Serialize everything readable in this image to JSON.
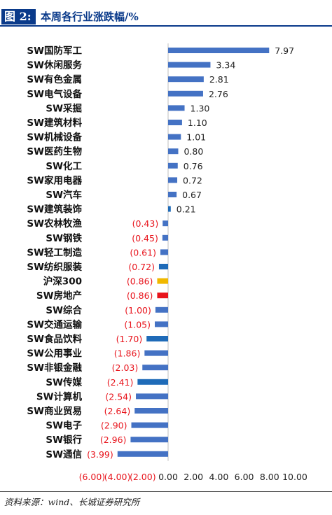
{
  "header": {
    "fig_tag": "图 2:",
    "title": "本周各行业涨跌幅/%"
  },
  "footer": {
    "source": "资料来源：wind、长城证券研究所"
  },
  "colors": {
    "bar_default": "#4472c4",
    "bar_highlight": "#1f6bb8",
    "bar_csi300": "#f0b800",
    "bar_real_estate": "#e8141c",
    "negative_label": "#e8141c",
    "positive_label": "#222222"
  },
  "chart_data": {
    "type": "bar",
    "orientation": "horizontal",
    "title": "本周各行业涨跌幅/%",
    "categories": [
      "SW国防军工",
      "SW休闲服务",
      "SW有色金属",
      "SW电气设备",
      "SW采掘",
      "SW建筑材料",
      "SW机械设备",
      "SW医药生物",
      "SW化工",
      "SW家用电器",
      "SW汽车",
      "SW建筑装饰",
      "SW农林牧渔",
      "SW钢铁",
      "SW轻工制造",
      "SW纺织服装",
      "沪深300",
      "SW房地产",
      "SW综合",
      "SW交通运输",
      "SW食品饮料",
      "SW公用事业",
      "SW非银金融",
      "SW传媒",
      "SW计算机",
      "SW商业贸易",
      "SW电子",
      "SW银行",
      "SW通信"
    ],
    "values": [
      7.97,
      3.34,
      2.81,
      2.76,
      1.3,
      1.1,
      1.01,
      0.8,
      0.76,
      0.72,
      0.67,
      0.21,
      -0.43,
      -0.45,
      -0.61,
      -0.72,
      -0.86,
      -0.86,
      -1.0,
      -1.05,
      -1.7,
      -1.86,
      -2.03,
      -2.41,
      -2.54,
      -2.64,
      -2.9,
      -2.96,
      -3.99
    ],
    "value_labels": [
      "7.97",
      "3.34",
      "2.81",
      "2.76",
      "1.30",
      "1.10",
      "1.01",
      "0.80",
      "0.76",
      "0.72",
      "0.67",
      "0.21",
      "(0.43)",
      "(0.45)",
      "(0.61)",
      "(0.72)",
      "(0.86)",
      "(0.86)",
      "(1.00)",
      "(1.05)",
      "(1.70)",
      "(1.86)",
      "(2.03)",
      "(2.41)",
      "(2.54)",
      "(2.64)",
      "(2.90)",
      "(2.96)",
      "(3.99)"
    ],
    "bar_colors": [
      "#4472c4",
      "#4472c4",
      "#4472c4",
      "#4472c4",
      "#4472c4",
      "#4472c4",
      "#4472c4",
      "#4472c4",
      "#4472c4",
      "#4472c4",
      "#4472c4",
      "#1f6bb8",
      "#4472c4",
      "#4472c4",
      "#4472c4",
      "#1f6bb8",
      "#f0b800",
      "#e8141c",
      "#4472c4",
      "#4472c4",
      "#1f6bb8",
      "#4472c4",
      "#4472c4",
      "#1f6bb8",
      "#4472c4",
      "#4472c4",
      "#4472c4",
      "#4472c4",
      "#4472c4"
    ],
    "xlim": [
      -6,
      10
    ],
    "x_ticks": [
      -6,
      -4,
      -2,
      0,
      2,
      4,
      6,
      8,
      10
    ],
    "x_tick_labels": [
      "(6.00)",
      "(4.00)",
      "(2.00)",
      "0.00",
      "2.00",
      "4.00",
      "6.00",
      "8.00",
      "10.00"
    ],
    "grid": false,
    "legend": "none",
    "xlabel": "",
    "ylabel": ""
  }
}
